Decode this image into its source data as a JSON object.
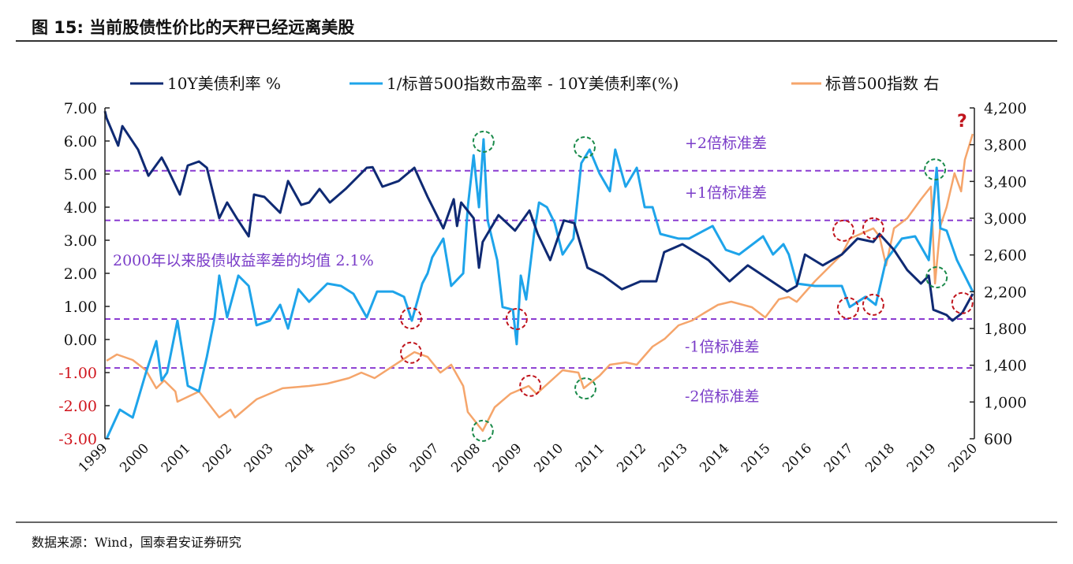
{
  "title": "图 15:  当前股债性价比的天秤已经远离美股",
  "source": "数据来源：Wind，国泰君安证券研究",
  "colors": {
    "yield": "#0f2a73",
    "spread": "#1ea4ea",
    "spx": "#f5a56b",
    "band": "#8a3bd1",
    "band_text": "#7a3cc8",
    "negative_tick": "#d0141c",
    "circle_red": "#c0141c",
    "circle_green": "#1a8a4a"
  },
  "chart_data": {
    "type": "line",
    "title": "",
    "legend": [
      "10Y美债利率 %",
      "1/标普500指数市盈率 - 10Y美债利率(%)",
      "标普500指数 右"
    ],
    "legend_placement": "top",
    "x_ticks": [
      "1999",
      "2000",
      "2001",
      "2002",
      "2003",
      "2004",
      "2005",
      "2006",
      "2007",
      "2008",
      "2009",
      "2010",
      "2011",
      "2012",
      "2013",
      "2014",
      "2015",
      "2016",
      "2017",
      "2018",
      "2019",
      "2020"
    ],
    "xlim": [
      1999,
      2020.05
    ],
    "y_left": {
      "lim": [
        -3,
        7
      ],
      "ticks": [
        "7.00",
        "6.00",
        "5.00",
        "4.00",
        "3.00",
        "2.00",
        "1.00",
        "0.00",
        "-1.00",
        "-2.00",
        "-3.00"
      ]
    },
    "y_right": {
      "lim": [
        600,
        4200
      ],
      "ticks": [
        "4,200",
        "3,800",
        "3,400",
        "3,000",
        "2,600",
        "2,200",
        "1,800",
        "1,400",
        "1,000",
        "600"
      ]
    },
    "grid": false,
    "series": [
      {
        "name": "10Y美债利率 %",
        "axis": "left",
        "points": [
          [
            1999.0,
            6.9
          ],
          [
            1999.04,
            6.69
          ],
          [
            1999.32,
            5.86
          ],
          [
            1999.42,
            6.45
          ],
          [
            1999.8,
            5.74
          ],
          [
            2000.05,
            4.95
          ],
          [
            2000.37,
            5.5
          ],
          [
            2000.5,
            5.19
          ],
          [
            2000.81,
            4.38
          ],
          [
            2001.0,
            5.26
          ],
          [
            2001.27,
            5.38
          ],
          [
            2001.46,
            5.19
          ],
          [
            2001.76,
            3.67
          ],
          [
            2001.95,
            4.14
          ],
          [
            2002.18,
            3.67
          ],
          [
            2002.47,
            3.12
          ],
          [
            2002.6,
            4.38
          ],
          [
            2002.85,
            4.31
          ],
          [
            2003.23,
            3.83
          ],
          [
            2003.42,
            4.79
          ],
          [
            2003.74,
            4.07
          ],
          [
            2003.93,
            4.14
          ],
          [
            2004.18,
            4.55
          ],
          [
            2004.43,
            4.14
          ],
          [
            2004.81,
            4.55
          ],
          [
            2005.32,
            5.19
          ],
          [
            2005.46,
            5.21
          ],
          [
            2005.7,
            4.62
          ],
          [
            2006.09,
            4.79
          ],
          [
            2006.47,
            5.19
          ],
          [
            2006.79,
            4.31
          ],
          [
            2007.17,
            3.36
          ],
          [
            2007.42,
            4.24
          ],
          [
            2007.5,
            3.43
          ],
          [
            2007.6,
            4.14
          ],
          [
            2007.9,
            3.67
          ],
          [
            2008.03,
            2.17
          ],
          [
            2008.12,
            2.95
          ],
          [
            2008.5,
            3.76
          ],
          [
            2008.9,
            3.29
          ],
          [
            2009.25,
            3.9
          ],
          [
            2009.45,
            3.19
          ],
          [
            2009.75,
            2.4
          ],
          [
            2010.08,
            3.6
          ],
          [
            2010.33,
            3.52
          ],
          [
            2010.65,
            2.17
          ],
          [
            2011.03,
            1.93
          ],
          [
            2011.48,
            1.52
          ],
          [
            2011.93,
            1.76
          ],
          [
            2012.31,
            1.76
          ],
          [
            2012.5,
            2.64
          ],
          [
            2012.94,
            2.88
          ],
          [
            2013.57,
            2.4
          ],
          [
            2014.08,
            1.76
          ],
          [
            2014.52,
            2.24
          ],
          [
            2015.47,
            1.45
          ],
          [
            2015.7,
            1.62
          ],
          [
            2015.9,
            2.57
          ],
          [
            2016.33,
            2.24
          ],
          [
            2016.79,
            2.57
          ],
          [
            2017.17,
            3.05
          ],
          [
            2017.55,
            2.95
          ],
          [
            2017.7,
            3.19
          ],
          [
            2018.05,
            2.71
          ],
          [
            2018.37,
            2.1
          ],
          [
            2018.7,
            1.69
          ],
          [
            2018.89,
            1.93
          ],
          [
            2019.0,
            0.9
          ],
          [
            2019.32,
            0.74
          ],
          [
            2019.46,
            0.57
          ],
          [
            2019.7,
            0.81
          ],
          [
            2019.95,
            1.38
          ]
        ]
      },
      {
        "name": "1/标普500指数市盈率 - 10Y美债利率(%)",
        "axis": "left",
        "points": [
          [
            1999.04,
            -3.0
          ],
          [
            1999.36,
            -2.12
          ],
          [
            1999.67,
            -2.36
          ],
          [
            1999.99,
            -1.0
          ],
          [
            2000.24,
            -0.05
          ],
          [
            2000.37,
            -1.24
          ],
          [
            2000.5,
            -1.0
          ],
          [
            2000.75,
            0.57
          ],
          [
            2001.0,
            -1.4
          ],
          [
            2001.27,
            -1.57
          ],
          [
            2001.46,
            -0.52
          ],
          [
            2001.65,
            0.67
          ],
          [
            2001.76,
            1.93
          ],
          [
            2001.95,
            0.67
          ],
          [
            2002.22,
            1.93
          ],
          [
            2002.47,
            1.62
          ],
          [
            2002.66,
            0.43
          ],
          [
            2002.98,
            0.57
          ],
          [
            2003.23,
            1.05
          ],
          [
            2003.42,
            0.33
          ],
          [
            2003.67,
            1.52
          ],
          [
            2003.93,
            1.14
          ],
          [
            2004.37,
            1.69
          ],
          [
            2004.7,
            1.62
          ],
          [
            2005.0,
            1.38
          ],
          [
            2005.32,
            0.67
          ],
          [
            2005.57,
            1.45
          ],
          [
            2005.95,
            1.45
          ],
          [
            2006.22,
            1.29
          ],
          [
            2006.41,
            0.57
          ],
          [
            2006.66,
            1.69
          ],
          [
            2006.79,
            2.0
          ],
          [
            2006.9,
            2.48
          ],
          [
            2007.17,
            3.05
          ],
          [
            2007.36,
            1.62
          ],
          [
            2007.65,
            2.0
          ],
          [
            2007.76,
            4.0
          ],
          [
            2007.9,
            5.57
          ],
          [
            2008.03,
            4.0
          ],
          [
            2008.14,
            6.05
          ],
          [
            2008.24,
            3.6
          ],
          [
            2008.47,
            2.4
          ],
          [
            2008.6,
            0.98
          ],
          [
            2008.85,
            0.9
          ],
          [
            2008.94,
            -0.14
          ],
          [
            2009.04,
            1.93
          ],
          [
            2009.17,
            1.21
          ],
          [
            2009.36,
            3.19
          ],
          [
            2009.48,
            4.14
          ],
          [
            2009.67,
            4.0
          ],
          [
            2009.86,
            3.52
          ],
          [
            2010.05,
            2.57
          ],
          [
            2010.31,
            3.05
          ],
          [
            2010.5,
            5.33
          ],
          [
            2010.7,
            5.74
          ],
          [
            2010.94,
            5.02
          ],
          [
            2011.19,
            4.48
          ],
          [
            2011.32,
            5.74
          ],
          [
            2011.57,
            4.62
          ],
          [
            2011.84,
            5.19
          ],
          [
            2012.03,
            4.0
          ],
          [
            2012.22,
            4.0
          ],
          [
            2012.41,
            3.19
          ],
          [
            2012.85,
            3.05
          ],
          [
            2013.1,
            3.05
          ],
          [
            2013.67,
            3.43
          ],
          [
            2013.99,
            2.71
          ],
          [
            2014.31,
            2.57
          ],
          [
            2014.89,
            3.12
          ],
          [
            2015.13,
            2.57
          ],
          [
            2015.38,
            2.88
          ],
          [
            2015.51,
            2.57
          ],
          [
            2015.7,
            1.69
          ],
          [
            2016.14,
            1.62
          ],
          [
            2016.79,
            1.62
          ],
          [
            2016.98,
            0.98
          ],
          [
            2017.36,
            1.29
          ],
          [
            2017.61,
            1.05
          ],
          [
            2017.86,
            2.4
          ],
          [
            2018.24,
            3.05
          ],
          [
            2018.56,
            3.12
          ],
          [
            2018.89,
            2.4
          ],
          [
            2019.08,
            5.19
          ],
          [
            2019.17,
            3.36
          ],
          [
            2019.32,
            3.29
          ],
          [
            2019.57,
            2.4
          ],
          [
            2019.95,
            1.45
          ]
        ]
      },
      {
        "name": "标普500指数 右",
        "axis": "right",
        "points": [
          [
            1999.04,
            1449
          ],
          [
            1999.29,
            1517
          ],
          [
            1999.67,
            1457
          ],
          [
            1999.99,
            1346
          ],
          [
            2000.24,
            1149
          ],
          [
            2000.43,
            1234
          ],
          [
            2000.7,
            1114
          ],
          [
            2000.75,
            1003
          ],
          [
            2001.27,
            1114
          ],
          [
            2001.51,
            977
          ],
          [
            2001.76,
            831
          ],
          [
            2002.03,
            917
          ],
          [
            2002.14,
            831
          ],
          [
            2002.66,
            1029
          ],
          [
            2003.29,
            1149
          ],
          [
            2003.93,
            1174
          ],
          [
            2004.37,
            1200
          ],
          [
            2004.89,
            1260
          ],
          [
            2005.19,
            1320
          ],
          [
            2005.51,
            1260
          ],
          [
            2006.09,
            1431
          ],
          [
            2006.47,
            1543
          ],
          [
            2006.79,
            1491
          ],
          [
            2007.1,
            1320
          ],
          [
            2007.36,
            1406
          ],
          [
            2007.65,
            1174
          ],
          [
            2007.76,
            891
          ],
          [
            2008.12,
            686
          ],
          [
            2008.41,
            943
          ],
          [
            2008.79,
            1089
          ],
          [
            2009.23,
            1174
          ],
          [
            2009.42,
            1089
          ],
          [
            2010.05,
            1346
          ],
          [
            2010.43,
            1320
          ],
          [
            2010.56,
            1149
          ],
          [
            2010.94,
            1286
          ],
          [
            2011.19,
            1406
          ],
          [
            2011.57,
            1431
          ],
          [
            2011.84,
            1406
          ],
          [
            2012.22,
            1603
          ],
          [
            2012.52,
            1689
          ],
          [
            2012.85,
            1834
          ],
          [
            2013.17,
            1886
          ],
          [
            2013.48,
            1971
          ],
          [
            2013.8,
            2057
          ],
          [
            2014.12,
            2091
          ],
          [
            2014.62,
            2031
          ],
          [
            2014.94,
            1920
          ],
          [
            2015.27,
            2117
          ],
          [
            2015.51,
            2143
          ],
          [
            2015.7,
            2090
          ],
          [
            2016.14,
            2314
          ],
          [
            2016.79,
            2606
          ],
          [
            2016.98,
            2777
          ],
          [
            2017.55,
            2889
          ],
          [
            2017.7,
            2800
          ],
          [
            2017.86,
            2486
          ],
          [
            2018.05,
            2889
          ],
          [
            2018.37,
            3000
          ],
          [
            2018.7,
            3206
          ],
          [
            2018.94,
            3343
          ],
          [
            2019.04,
            2289
          ],
          [
            2019.17,
            2914
          ],
          [
            2019.32,
            3120
          ],
          [
            2019.51,
            3489
          ],
          [
            2019.67,
            3291
          ],
          [
            2019.76,
            3634
          ],
          [
            2019.95,
            3917
          ]
        ]
      }
    ],
    "reference_lines": [
      {
        "value": 5.1,
        "label": "+2倍标准差",
        "label_value": 5.95
      },
      {
        "value": 3.6,
        "label": "+1倍标准差",
        "label_value": 4.45
      },
      {
        "value": 0.62,
        "label": "-1倍标准差",
        "label_value": -0.2
      },
      {
        "value": -0.86,
        "label": "-2倍标准差",
        "label_value": -1.7
      }
    ],
    "annotations": {
      "mean_text": "2000年以来股债收益率差的均值 2.1%",
      "question_mark": "?",
      "circles": [
        {
          "color": "red",
          "x": 2006.39,
          "y": 0.64
        },
        {
          "color": "red",
          "x": 2006.39,
          "y": -0.4
        },
        {
          "color": "red",
          "x": 2008.94,
          "y": 0.62
        },
        {
          "color": "red",
          "x": 2009.27,
          "y": -1.4
        },
        {
          "color": "red",
          "x": 2016.94,
          "y": 0.95
        },
        {
          "color": "red",
          "x": 2017.55,
          "y": 1.05
        },
        {
          "color": "red",
          "x": 2016.83,
          "y": 3.29
        },
        {
          "color": "red",
          "x": 2017.55,
          "y": 3.36
        },
        {
          "color": "red",
          "x": 2019.7,
          "y": 1.1
        },
        {
          "color": "green",
          "x": 2008.14,
          "y": 5.98
        },
        {
          "color": "green",
          "x": 2010.58,
          "y": 5.81
        },
        {
          "color": "green",
          "x": 2019.04,
          "y": 5.14
        },
        {
          "color": "green",
          "x": 2019.08,
          "y": 1.88
        },
        {
          "color": "green",
          "x": 2008.12,
          "y": -2.76
        },
        {
          "color": "green",
          "x": 2010.6,
          "y": -1.48
        }
      ]
    }
  }
}
